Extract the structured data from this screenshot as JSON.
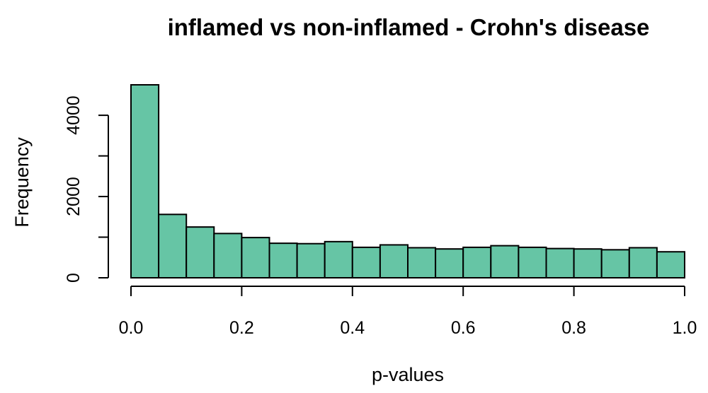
{
  "chart_data": {
    "type": "bar",
    "title": "inflamed vs non-inflamed - Crohn's disease",
    "xlabel": "p-values",
    "ylabel": "Frequency",
    "bar_color": "#66c5a5",
    "bin_edges": [
      0.0,
      0.05,
      0.1,
      0.15,
      0.2,
      0.25,
      0.3,
      0.35,
      0.4,
      0.45,
      0.5,
      0.55,
      0.6,
      0.65,
      0.7,
      0.75,
      0.8,
      0.85,
      0.9,
      0.95,
      1.0
    ],
    "values": [
      4750,
      1560,
      1250,
      1090,
      990,
      850,
      840,
      890,
      750,
      810,
      740,
      710,
      750,
      790,
      750,
      720,
      710,
      690,
      740,
      640
    ],
    "xlim": [
      0.0,
      1.0
    ],
    "ylim": [
      0,
      4750
    ],
    "x_ticks": [
      0.0,
      0.2,
      0.4,
      0.6,
      0.8,
      1.0
    ],
    "x_tick_labels": [
      "0.0",
      "0.2",
      "0.4",
      "0.6",
      "0.8",
      "1.0"
    ],
    "y_ticks": [
      0,
      1000,
      2000,
      3000,
      4000
    ],
    "y_tick_labels": [
      "0",
      "",
      "2000",
      "",
      "4000"
    ]
  }
}
